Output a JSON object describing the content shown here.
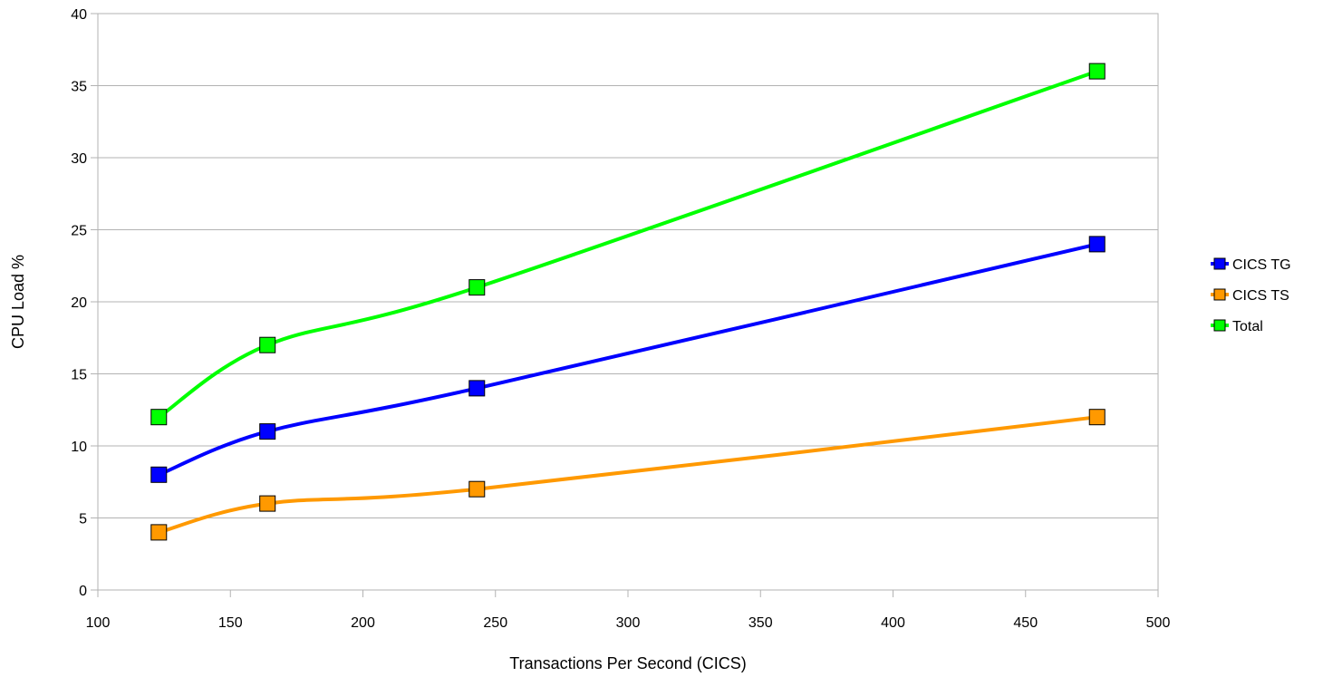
{
  "chart_data": {
    "type": "line",
    "title": "",
    "xlabel": "Transactions Per Second (CICS)",
    "ylabel": "CPU Load %",
    "xlim": [
      100,
      500
    ],
    "ylim": [
      0,
      40
    ],
    "x_ticks": [
      "100",
      "150",
      "200",
      "250",
      "300",
      "350",
      "400",
      "450",
      "500"
    ],
    "y_ticks": [
      "0",
      "5",
      "10",
      "15",
      "20",
      "25",
      "30",
      "35",
      "40"
    ],
    "grid": true,
    "legend_position": "right",
    "series": [
      {
        "name": "CICS TG",
        "color": "#0000ff",
        "x": [
          123,
          164,
          243,
          477
        ],
        "y": [
          8,
          11,
          14,
          24
        ]
      },
      {
        "name": "CICS TS",
        "color": "#ff9900",
        "x": [
          123,
          164,
          243,
          477
        ],
        "y": [
          4,
          6,
          7,
          12
        ]
      },
      {
        "name": "Total",
        "color": "#00ff00",
        "x": [
          123,
          164,
          243,
          477
        ],
        "y": [
          12,
          17,
          21,
          36
        ]
      }
    ]
  }
}
